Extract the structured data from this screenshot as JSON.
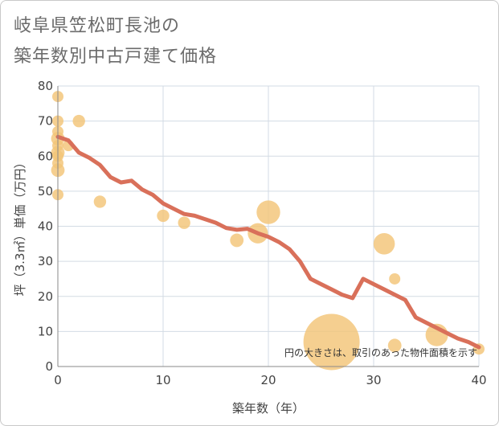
{
  "header": {
    "title_line1": "岐阜県笠松町長池の",
    "title_line2": "築年数別中古戸建て価格"
  },
  "colors": {
    "bubble": "#f3c478",
    "trend": "#d9705a",
    "grid": "#d3dbe4",
    "axis": "#8a8a8a"
  },
  "chart_data": {
    "type": "scatter",
    "title": "岐阜県笠松町長池の築年数別中古戸建て価格",
    "xlabel": "築年数（年）",
    "ylabel": "坪（3.3㎡）単価（万円）",
    "xlim": [
      0,
      40
    ],
    "ylim": [
      0,
      80
    ],
    "xticks": [
      0,
      10,
      20,
      30,
      40
    ],
    "yticks": [
      0,
      10,
      20,
      30,
      40,
      50,
      60,
      70,
      80
    ],
    "grid": true,
    "annotation": "円の大きさは、取引のあった物件面積を示す",
    "bubbles": [
      {
        "x": 0,
        "y": 77,
        "size": 1
      },
      {
        "x": 0,
        "y": 70,
        "size": 1
      },
      {
        "x": 0,
        "y": 67,
        "size": 1
      },
      {
        "x": 0,
        "y": 65,
        "size": 1.2
      },
      {
        "x": 0,
        "y": 63,
        "size": 1
      },
      {
        "x": 0,
        "y": 61,
        "size": 1.2
      },
      {
        "x": 0,
        "y": 60,
        "size": 1
      },
      {
        "x": 0,
        "y": 58,
        "size": 1
      },
      {
        "x": 0,
        "y": 56,
        "size": 1.2
      },
      {
        "x": 0,
        "y": 49,
        "size": 1
      },
      {
        "x": 1,
        "y": 63,
        "size": 1
      },
      {
        "x": 2,
        "y": 70,
        "size": 1.1
      },
      {
        "x": 4,
        "y": 47,
        "size": 1.1
      },
      {
        "x": 10,
        "y": 43,
        "size": 1.1
      },
      {
        "x": 12,
        "y": 41,
        "size": 1.1
      },
      {
        "x": 17,
        "y": 36,
        "size": 1.2
      },
      {
        "x": 19,
        "y": 38,
        "size": 1.8
      },
      {
        "x": 20,
        "y": 44,
        "size": 2.1
      },
      {
        "x": 26,
        "y": 7,
        "size": 5
      },
      {
        "x": 31,
        "y": 35,
        "size": 1.9
      },
      {
        "x": 32,
        "y": 25,
        "size": 1
      },
      {
        "x": 32,
        "y": 6,
        "size": 1.2
      },
      {
        "x": 36,
        "y": 9,
        "size": 2
      },
      {
        "x": 40,
        "y": 5,
        "size": 1
      }
    ],
    "trend": {
      "x": [
        0,
        1,
        2,
        3,
        4,
        5,
        6,
        7,
        8,
        9,
        10,
        11,
        12,
        13,
        14,
        15,
        16,
        17,
        18,
        19,
        20,
        21,
        22,
        23,
        24,
        25,
        26,
        27,
        28,
        29,
        30,
        31,
        32,
        33,
        34,
        35,
        36,
        37,
        38,
        39,
        40
      ],
      "y": [
        65.5,
        64.5,
        61,
        59.5,
        57.5,
        54,
        52.5,
        53,
        50.5,
        49,
        46.5,
        45,
        43.5,
        43,
        42,
        41,
        39.5,
        39,
        39.3,
        38,
        37,
        35.5,
        33.5,
        30,
        25,
        23.5,
        22,
        20.5,
        19.5,
        25,
        23.5,
        22,
        20.5,
        19,
        14,
        12.5,
        11,
        9.5,
        8,
        7,
        5.5
      ]
    }
  }
}
